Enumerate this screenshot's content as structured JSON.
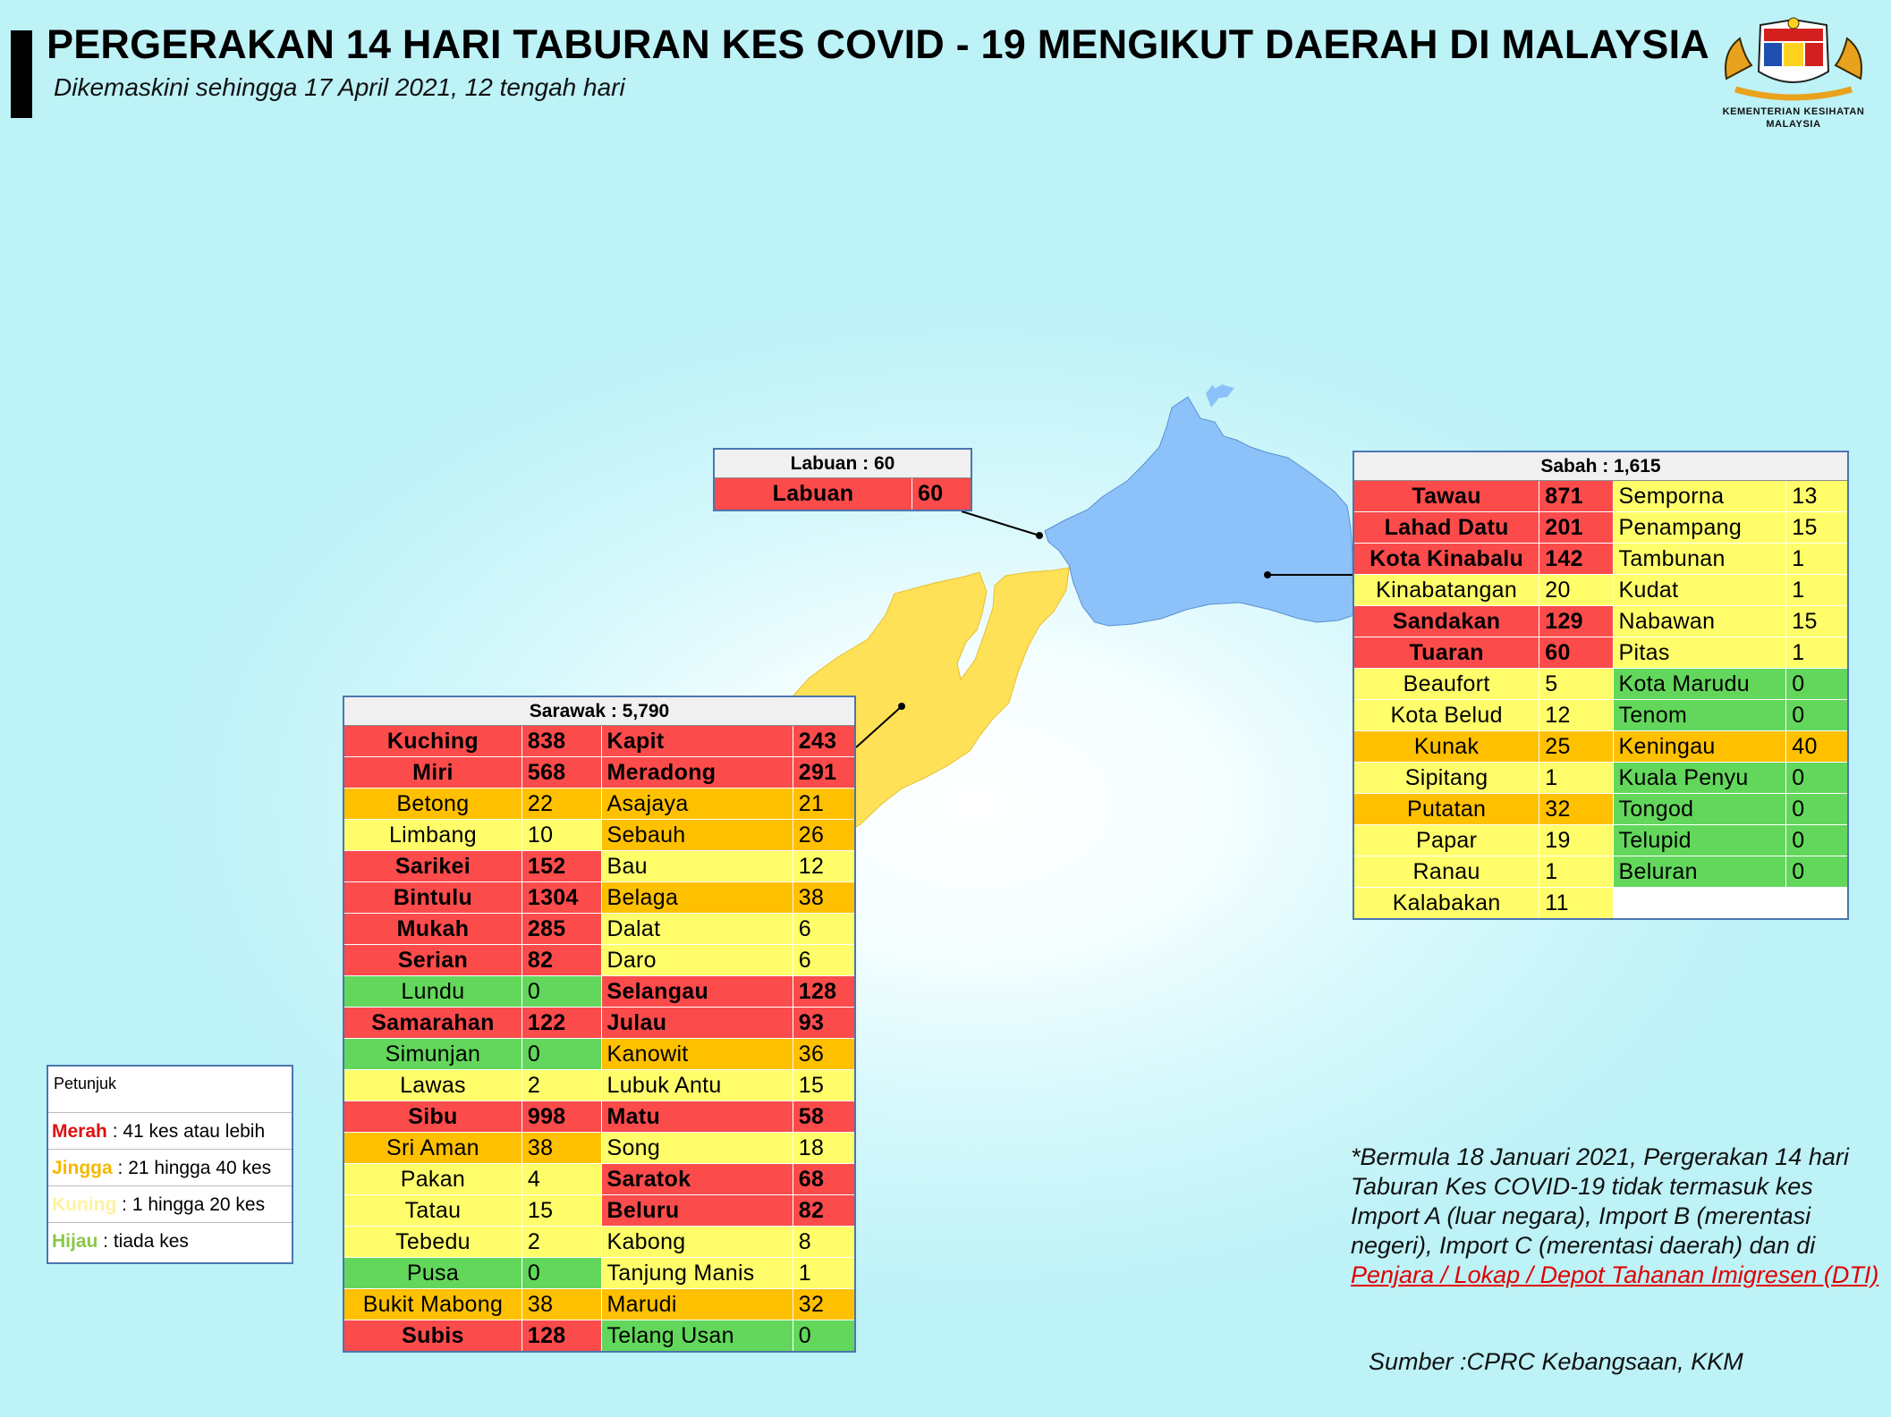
{
  "header": {
    "title": "PERGERAKAN 14 HARI TABURAN KES COVID - 19 MENGIKUT DAERAH DI MALAYSIA",
    "subtitle": "Dikemaskini sehingga 17 April 2021, 12 tengah hari"
  },
  "logo": {
    "line1": "KEMENTERIAN KESIHATAN",
    "line2": "MALAYSIA"
  },
  "colors": {
    "red": "#fc4b4b",
    "orange": "#ffc000",
    "yellow": "#fffe6a",
    "green": "#63d75b",
    "sabah_map": "#8cc2f9",
    "sarawak_map": "#ffe157"
  },
  "labuan": {
    "title": "Labuan : 60",
    "rows": [
      {
        "name": "Labuan",
        "value": "60",
        "level": "red"
      }
    ]
  },
  "sabah": {
    "title": "Sabah : 1,615",
    "rows": [
      [
        {
          "name": "Tawau",
          "value": "871",
          "level": "red"
        },
        {
          "name": "Semporna",
          "value": "13",
          "level": "yellow"
        }
      ],
      [
        {
          "name": "Lahad Datu",
          "value": "201",
          "level": "red"
        },
        {
          "name": "Penampang",
          "value": "15",
          "level": "yellow"
        }
      ],
      [
        {
          "name": "Kota Kinabalu",
          "value": "142",
          "level": "red"
        },
        {
          "name": "Tambunan",
          "value": "1",
          "level": "yellow"
        }
      ],
      [
        {
          "name": "Kinabatangan",
          "value": "20",
          "level": "yellow"
        },
        {
          "name": "Kudat",
          "value": "1",
          "level": "yellow"
        }
      ],
      [
        {
          "name": "Sandakan",
          "value": "129",
          "level": "red"
        },
        {
          "name": "Nabawan",
          "value": "15",
          "level": "yellow"
        }
      ],
      [
        {
          "name": "Tuaran",
          "value": "60",
          "level": "red"
        },
        {
          "name": "Pitas",
          "value": "1",
          "level": "yellow"
        }
      ],
      [
        {
          "name": "Beaufort",
          "value": "5",
          "level": "yellow"
        },
        {
          "name": "Kota Marudu",
          "value": "0",
          "level": "green"
        }
      ],
      [
        {
          "name": "Kota Belud",
          "value": "12",
          "level": "yellow"
        },
        {
          "name": "Tenom",
          "value": "0",
          "level": "green"
        }
      ],
      [
        {
          "name": "Kunak",
          "value": "25",
          "level": "orange"
        },
        {
          "name": "Keningau",
          "value": "40",
          "level": "orange"
        }
      ],
      [
        {
          "name": "Sipitang",
          "value": "1",
          "level": "yellow"
        },
        {
          "name": "Kuala Penyu",
          "value": "0",
          "level": "green"
        }
      ],
      [
        {
          "name": "Putatan",
          "value": "32",
          "level": "orange"
        },
        {
          "name": "Tongod",
          "value": "0",
          "level": "green"
        }
      ],
      [
        {
          "name": "Papar",
          "value": "19",
          "level": "yellow"
        },
        {
          "name": "Telupid",
          "value": "0",
          "level": "green"
        }
      ],
      [
        {
          "name": "Ranau",
          "value": "1",
          "level": "yellow"
        },
        {
          "name": "Beluran",
          "value": "0",
          "level": "green"
        }
      ],
      [
        {
          "name": "Kalabakan",
          "value": "11",
          "level": "yellow"
        },
        {
          "name": "",
          "value": "",
          "level": "empty"
        }
      ]
    ]
  },
  "sarawak": {
    "title": "Sarawak : 5,790",
    "rows": [
      [
        {
          "name": "Kuching",
          "value": "838",
          "level": "red"
        },
        {
          "name": "Kapit",
          "value": "243",
          "level": "red"
        }
      ],
      [
        {
          "name": "Miri",
          "value": "568",
          "level": "red"
        },
        {
          "name": "Meradong",
          "value": "291",
          "level": "red"
        }
      ],
      [
        {
          "name": "Betong",
          "value": "22",
          "level": "orange"
        },
        {
          "name": "Asajaya",
          "value": "21",
          "level": "orange"
        }
      ],
      [
        {
          "name": "Limbang",
          "value": "10",
          "level": "yellow"
        },
        {
          "name": "Sebauh",
          "value": "26",
          "level": "orange"
        }
      ],
      [
        {
          "name": "Sarikei",
          "value": "152",
          "level": "red"
        },
        {
          "name": "Bau",
          "value": "12",
          "level": "yellow"
        }
      ],
      [
        {
          "name": "Bintulu",
          "value": "1304",
          "level": "red"
        },
        {
          "name": "Belaga",
          "value": "38",
          "level": "orange"
        }
      ],
      [
        {
          "name": "Mukah",
          "value": "285",
          "level": "red"
        },
        {
          "name": "Dalat",
          "value": "6",
          "level": "yellow"
        }
      ],
      [
        {
          "name": "Serian",
          "value": "82",
          "level": "red"
        },
        {
          "name": "Daro",
          "value": "6",
          "level": "yellow"
        }
      ],
      [
        {
          "name": "Lundu",
          "value": "0",
          "level": "green"
        },
        {
          "name": "Selangau",
          "value": "128",
          "level": "red"
        }
      ],
      [
        {
          "name": "Samarahan",
          "value": "122",
          "level": "red"
        },
        {
          "name": "Julau",
          "value": "93",
          "level": "red"
        }
      ],
      [
        {
          "name": "Simunjan",
          "value": "0",
          "level": "green"
        },
        {
          "name": "Kanowit",
          "value": "36",
          "level": "orange"
        }
      ],
      [
        {
          "name": "Lawas",
          "value": "2",
          "level": "yellow"
        },
        {
          "name": "Lubuk Antu",
          "value": "15",
          "level": "yellow"
        }
      ],
      [
        {
          "name": "Sibu",
          "value": "998",
          "level": "red"
        },
        {
          "name": "Matu",
          "value": "58",
          "level": "red"
        }
      ],
      [
        {
          "name": "Sri Aman",
          "value": "38",
          "level": "orange"
        },
        {
          "name": "Song",
          "value": "18",
          "level": "yellow"
        }
      ],
      [
        {
          "name": "Pakan",
          "value": "4",
          "level": "yellow"
        },
        {
          "name": "Saratok",
          "value": "68",
          "level": "red"
        }
      ],
      [
        {
          "name": "Tatau",
          "value": "15",
          "level": "yellow"
        },
        {
          "name": "Beluru",
          "value": "82",
          "level": "red"
        }
      ],
      [
        {
          "name": "Tebedu",
          "value": "2",
          "level": "yellow"
        },
        {
          "name": "Kabong",
          "value": "8",
          "level": "yellow"
        }
      ],
      [
        {
          "name": "Pusa",
          "value": "0",
          "level": "green"
        },
        {
          "name": "Tanjung Manis",
          "value": "1",
          "level": "yellow"
        }
      ],
      [
        {
          "name": "Bukit Mabong",
          "value": "38",
          "level": "orange"
        },
        {
          "name": "Marudi",
          "value": "32",
          "level": "orange"
        }
      ],
      [
        {
          "name": "Subis",
          "value": "128",
          "level": "red"
        },
        {
          "name": "Telang Usan",
          "value": "0",
          "level": "green"
        }
      ]
    ]
  },
  "legend": {
    "title": "Petunjuk",
    "items": [
      {
        "key": "Merah",
        "text": " : 41 kes atau lebih",
        "color": "#e01010"
      },
      {
        "key": "Jingga",
        "text": " : 21 hingga 40 kes",
        "color": "#f5b800"
      },
      {
        "key": "Kuning",
        "text": " : 1 hingga 20 kes",
        "color": "#fff2a0"
      },
      {
        "key": "Hijau",
        "text": " : tiada kes",
        "color": "#8ac74a"
      }
    ]
  },
  "note": {
    "text": "*Bermula 18 Januari 2021, Pergerakan 14 hari Taburan Kes COVID-19 tidak termasuk kes Import A (luar negara), Import B (merentasi negeri), Import C (merentasi daerah) dan di ",
    "highlight": "Penjara / Lokap / Depot Tahanan Imigresen (DTI)"
  },
  "source": "Sumber :CPRC Kebangsaan,  KKM"
}
